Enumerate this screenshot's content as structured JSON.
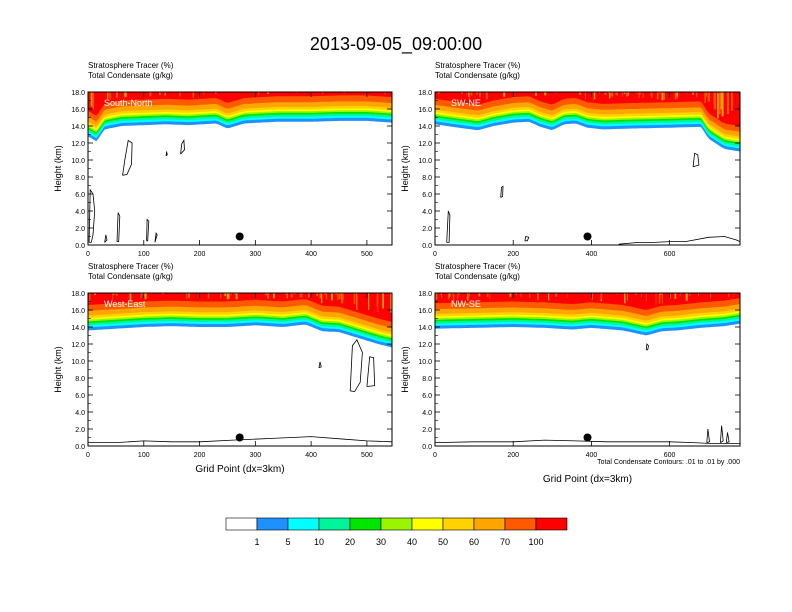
{
  "title": "2013-09-05_09:00:00",
  "chart_data": [
    {
      "type": "heatmap",
      "panel_label": "South-North",
      "header_line1": "Stratosphere Tracer   (%)",
      "header_line2": "Total Condensate   (g/kg)",
      "ylabel": "Height (km)",
      "xlabel": "",
      "xlim": [
        0,
        545
      ],
      "ylim": [
        0,
        18
      ],
      "xticks": [
        0,
        100,
        200,
        300,
        400,
        500
      ],
      "yticks": [
        "0.0",
        "2.0",
        "4.0",
        "6.0",
        "8.0",
        "10.0",
        "12.0",
        "14.0",
        "16.0",
        "18.0"
      ],
      "marker_x": 272,
      "tropopause": [
        [
          0,
          12.8
        ],
        [
          15,
          12.2
        ],
        [
          30,
          13.6
        ],
        [
          60,
          14.0
        ],
        [
          100,
          14.1
        ],
        [
          140,
          14.2
        ],
        [
          180,
          14.1
        ],
        [
          230,
          14.3
        ],
        [
          250,
          13.7
        ],
        [
          280,
          14.3
        ],
        [
          340,
          14.5
        ],
        [
          400,
          14.5
        ],
        [
          450,
          14.6
        ],
        [
          500,
          14.6
        ],
        [
          545,
          14.4
        ]
      ],
      "condensate_contours": [
        [
          [
            62,
            8.2
          ],
          [
            66,
            10.0
          ],
          [
            72,
            12.3
          ],
          [
            79,
            12.0
          ],
          [
            78,
            9.5
          ],
          [
            70,
            8.3
          ],
          [
            62,
            8.2
          ]
        ],
        [
          [
            166,
            10.7
          ],
          [
            168,
            11.9
          ],
          [
            172,
            12.3
          ],
          [
            173,
            11.2
          ],
          [
            166,
            10.7
          ]
        ],
        [
          [
            140,
            10.5
          ],
          [
            141,
            11.0
          ],
          [
            142,
            10.6
          ],
          [
            140,
            10.5
          ]
        ],
        [
          [
            2,
            0.3
          ],
          [
            4,
            6.5
          ],
          [
            9,
            6.0
          ],
          [
            12,
            4.0
          ],
          [
            9,
            1.2
          ],
          [
            6,
            0.3
          ],
          [
            2,
            0.3
          ]
        ],
        [
          [
            52,
            0.4
          ],
          [
            54,
            3.8
          ],
          [
            57,
            3.4
          ],
          [
            55,
            0.4
          ],
          [
            52,
            0.4
          ]
        ],
        [
          [
            105,
            0.5
          ],
          [
            106,
            3.0
          ],
          [
            109,
            2.8
          ],
          [
            107,
            0.5
          ],
          [
            105,
            0.5
          ]
        ],
        [
          [
            120,
            0.3
          ],
          [
            122,
            1.4
          ],
          [
            124,
            1.2
          ],
          [
            120,
            0.3
          ]
        ],
        [
          [
            30,
            0.3
          ],
          [
            32,
            1.2
          ],
          [
            34,
            0.6
          ],
          [
            30,
            0.3
          ]
        ]
      ]
    },
    {
      "type": "heatmap",
      "panel_label": "SW-NE",
      "header_line1": "Stratosphere Tracer   (%)",
      "header_line2": "Total Condensate   (g/kg)",
      "ylabel": "Height (km)",
      "xlabel": "",
      "xlim": [
        0,
        780
      ],
      "ylim": [
        0,
        18
      ],
      "xticks": [
        0,
        200,
        400,
        600
      ],
      "yticks": [
        "0.0",
        "2.0",
        "4.0",
        "6.0",
        "8.0",
        "10.0",
        "12.0",
        "14.0",
        "16.0",
        "18.0"
      ],
      "marker_x": 390,
      "tropopause": [
        [
          0,
          14.2
        ],
        [
          60,
          13.8
        ],
        [
          110,
          13.5
        ],
        [
          150,
          14.0
        ],
        [
          200,
          14.4
        ],
        [
          240,
          14.5
        ],
        [
          270,
          13.9
        ],
        [
          300,
          13.5
        ],
        [
          330,
          14.2
        ],
        [
          360,
          14.3
        ],
        [
          390,
          13.8
        ],
        [
          430,
          13.6
        ],
        [
          500,
          13.7
        ],
        [
          600,
          13.8
        ],
        [
          680,
          13.9
        ],
        [
          700,
          12.5
        ],
        [
          740,
          11.3
        ],
        [
          780,
          11.0
        ]
      ],
      "condensate_contours": [
        [
          [
            168,
            5.6
          ],
          [
            170,
            6.8
          ],
          [
            174,
            6.9
          ],
          [
            173,
            5.7
          ],
          [
            168,
            5.6
          ]
        ],
        [
          [
            660,
            9.2
          ],
          [
            664,
            10.8
          ],
          [
            672,
            10.6
          ],
          [
            675,
            9.4
          ],
          [
            660,
            9.2
          ]
        ],
        [
          [
            30,
            0.3
          ],
          [
            34,
            4.0
          ],
          [
            38,
            3.5
          ],
          [
            36,
            0.3
          ],
          [
            30,
            0.3
          ]
        ],
        [
          [
            230,
            0.5
          ],
          [
            232,
            1.0
          ],
          [
            240,
            0.9
          ],
          [
            236,
            0.5
          ],
          [
            230,
            0.5
          ]
        ],
        [
          [
            470,
            0.1
          ],
          [
            520,
            0.3
          ],
          [
            560,
            0.3
          ],
          [
            600,
            0.4
          ],
          [
            640,
            0.4
          ],
          [
            700,
            0.9
          ],
          [
            740,
            1.0
          ],
          [
            770,
            0.6
          ],
          [
            780,
            0.4
          ]
        ]
      ]
    },
    {
      "type": "heatmap",
      "panel_label": "West-East",
      "header_line1": "Stratosphere Tracer   (%)",
      "header_line2": "Total Condensate   (g/kg)",
      "ylabel": "Height (km)",
      "xlabel": "Grid Point (dx=3km)",
      "xlim": [
        0,
        545
      ],
      "ylim": [
        0,
        18
      ],
      "xticks": [
        0,
        100,
        200,
        300,
        400,
        500
      ],
      "yticks": [
        "0.0",
        "2.0",
        "4.0",
        "6.0",
        "8.0",
        "10.0",
        "12.0",
        "14.0",
        "16.0",
        "18.0"
      ],
      "marker_x": 272,
      "tropopause": [
        [
          0,
          13.6
        ],
        [
          50,
          13.8
        ],
        [
          100,
          14.0
        ],
        [
          150,
          14.1
        ],
        [
          200,
          14.0
        ],
        [
          250,
          14.0
        ],
        [
          300,
          14.2
        ],
        [
          350,
          14.0
        ],
        [
          390,
          14.3
        ],
        [
          420,
          13.5
        ],
        [
          450,
          13.4
        ],
        [
          480,
          12.8
        ],
        [
          500,
          12.4
        ],
        [
          520,
          12.0
        ],
        [
          545,
          11.6
        ]
      ],
      "condensate_contours": [
        [
          [
            470,
            6.5
          ],
          [
            474,
            11.8
          ],
          [
            482,
            12.5
          ],
          [
            492,
            11.0
          ],
          [
            488,
            7.5
          ],
          [
            478,
            6.4
          ],
          [
            470,
            6.5
          ]
        ],
        [
          [
            500,
            7.0
          ],
          [
            505,
            10.5
          ],
          [
            512,
            10.4
          ],
          [
            514,
            7.1
          ],
          [
            500,
            7.0
          ]
        ],
        [
          [
            414,
            9.2
          ],
          [
            416,
            9.9
          ],
          [
            418,
            9.3
          ],
          [
            414,
            9.2
          ]
        ],
        [
          [
            0,
            0.4
          ],
          [
            50,
            0.4
          ],
          [
            100,
            0.6
          ],
          [
            150,
            0.5
          ],
          [
            200,
            0.5
          ],
          [
            260,
            0.7
          ],
          [
            330,
            0.9
          ],
          [
            400,
            1.1
          ],
          [
            460,
            0.8
          ],
          [
            500,
            0.6
          ],
          [
            545,
            0.5
          ]
        ]
      ]
    },
    {
      "type": "heatmap",
      "panel_label": "NW-SE",
      "header_line1": "Stratosphere Tracer   (%)",
      "header_line2": "Total Condensate   (g/kg)",
      "ylabel": "Height (km)",
      "xlabel": "Grid Point (dx=3km)",
      "xlim": [
        0,
        780
      ],
      "ylim": [
        0,
        18
      ],
      "xticks": [
        0,
        200,
        400,
        600
      ],
      "yticks": [
        "0.0",
        "2.0",
        "4.0",
        "6.0",
        "8.0",
        "10.0",
        "12.0",
        "14.0",
        "16.0",
        "18.0"
      ],
      "marker_x": 390,
      "tropopause": [
        [
          0,
          13.8
        ],
        [
          100,
          13.9
        ],
        [
          200,
          14.0
        ],
        [
          280,
          13.9
        ],
        [
          350,
          13.7
        ],
        [
          400,
          13.9
        ],
        [
          480,
          13.6
        ],
        [
          540,
          13.0
        ],
        [
          580,
          13.5
        ],
        [
          620,
          13.6
        ],
        [
          680,
          13.9
        ],
        [
          740,
          14.1
        ],
        [
          780,
          14.4
        ]
      ],
      "condensate_contours": [
        [
          [
            540,
            11.3
          ],
          [
            542,
            12.0
          ],
          [
            546,
            11.8
          ],
          [
            544,
            11.3
          ],
          [
            540,
            11.3
          ]
        ],
        [
          [
            0,
            0.4
          ],
          [
            100,
            0.5
          ],
          [
            200,
            0.5
          ],
          [
            280,
            0.7
          ],
          [
            360,
            0.6
          ],
          [
            440,
            0.5
          ],
          [
            520,
            0.5
          ],
          [
            600,
            0.5
          ],
          [
            660,
            0.4
          ],
          [
            700,
            0.3
          ],
          [
            780,
            0.3
          ]
        ],
        [
          [
            695,
            0.4
          ],
          [
            698,
            2.0
          ],
          [
            702,
            0.5
          ],
          [
            695,
            0.4
          ]
        ],
        [
          [
            730,
            0.4
          ],
          [
            733,
            2.4
          ],
          [
            737,
            0.6
          ],
          [
            730,
            0.4
          ]
        ],
        [
          [
            745,
            0.4
          ],
          [
            748,
            1.6
          ],
          [
            752,
            0.5
          ],
          [
            745,
            0.4
          ]
        ]
      ]
    }
  ],
  "footnote": "Total Condensate Contours: .01 to .01 by .000",
  "colorbar": {
    "colors": [
      "#ffffff",
      "#1e90ff",
      "#00ffff",
      "#00f59b",
      "#00e600",
      "#9cf500",
      "#ffff00",
      "#ffd200",
      "#ffa500",
      "#ff5a00",
      "#ff0000"
    ],
    "labels": [
      "1",
      "5",
      "10",
      "20",
      "30",
      "40",
      "50",
      "60",
      "70",
      "100"
    ]
  }
}
